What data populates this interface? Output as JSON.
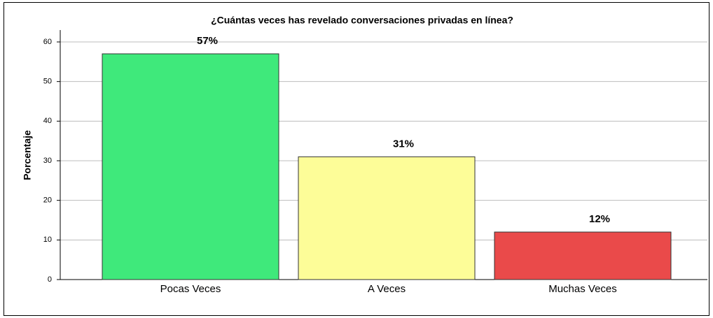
{
  "chart_data": {
    "type": "bar",
    "title": "¿Cuántas veces has revelado conversaciones privadas en línea?",
    "y_label": "Porcentaje",
    "categories": [
      "Pocas Veces",
      "A Veces",
      "Muchas Veces"
    ],
    "values": [
      57,
      31,
      12
    ],
    "value_labels": [
      "57%",
      "31%",
      "12%"
    ],
    "colors": [
      "#3fe97b",
      "#fdfd98",
      "#ea4a4a"
    ],
    "ylim": [
      0,
      63
    ],
    "yticks": [
      0,
      10,
      20,
      30,
      40,
      50,
      60
    ],
    "grid": true
  }
}
